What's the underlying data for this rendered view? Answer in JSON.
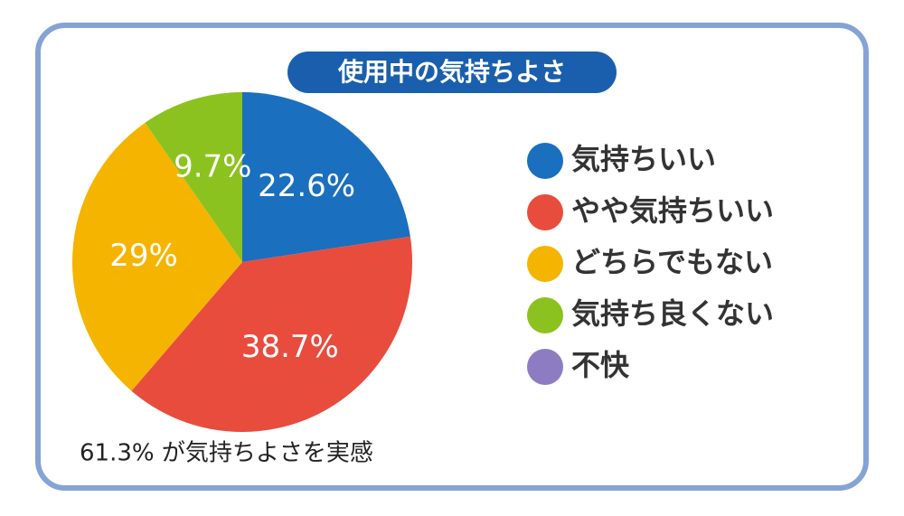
{
  "chart_data": {
    "type": "pie",
    "title": "使用中の気持ちよさ",
    "categories": [
      "気持ちいい",
      "やや気持ちいい",
      "どちらでもない",
      "気持ち良くない",
      "不快"
    ],
    "values": [
      22.6,
      38.7,
      29,
      9.7,
      0
    ],
    "value_labels": [
      "22.6%",
      "38.7%",
      "29%",
      "9.7%",
      null
    ],
    "colors": [
      "#1a6fbf",
      "#e84c3d",
      "#f5b400",
      "#8cc21f",
      "#8e7cc3"
    ],
    "annotation": "61.3% が気持ちよさを実感"
  }
}
